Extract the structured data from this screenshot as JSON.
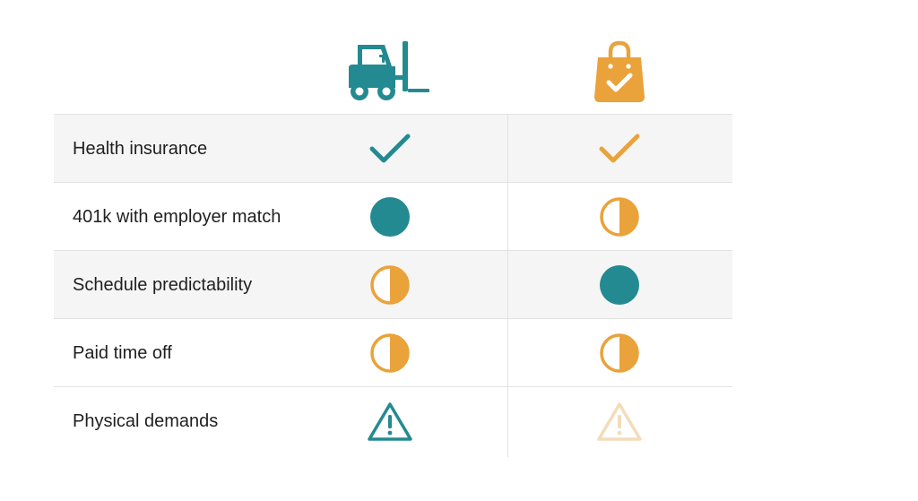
{
  "colors": {
    "teal": "#248a91",
    "orange": "#eaa23a",
    "orange_faded": "#f3dcb8",
    "shade": "#f5f5f5",
    "divider": "#e2e2e2",
    "text": "#1f1f1f"
  },
  "columns": [
    {
      "icon": "forklift-icon",
      "color": "#248a91"
    },
    {
      "icon": "shopping-bag-check-icon",
      "color": "#eaa23a"
    }
  ],
  "rows": [
    {
      "label": "Health insurance",
      "warehouse": "check",
      "retail": "check"
    },
    {
      "label": "401k with employer match",
      "warehouse": "full",
      "retail": "half"
    },
    {
      "label": "Schedule predictability",
      "warehouse": "half",
      "retail": "full"
    },
    {
      "label": "Paid time off",
      "warehouse": "half",
      "retail": "half"
    },
    {
      "label": "Physical demands",
      "warehouse": "warning",
      "retail": "warning-faded"
    }
  ]
}
